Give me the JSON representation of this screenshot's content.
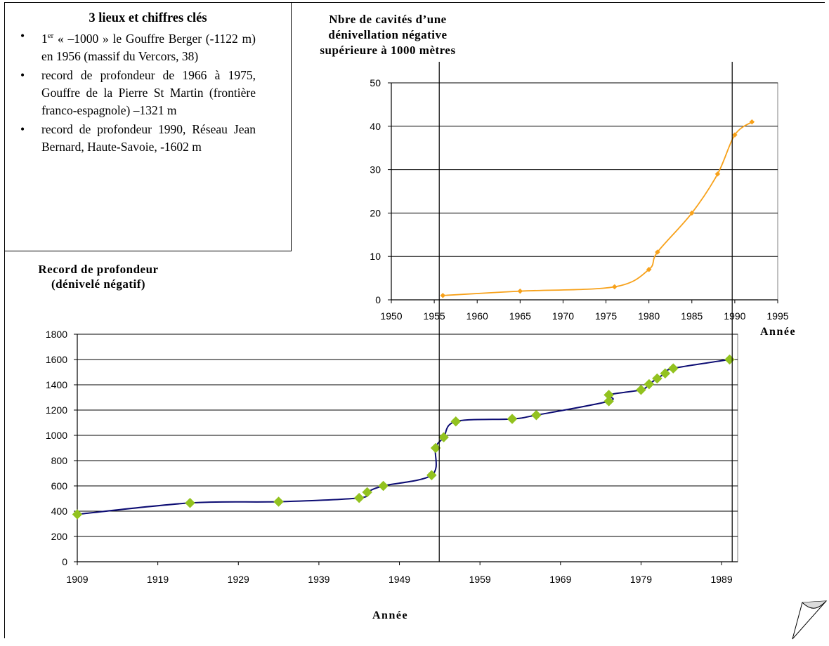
{
  "info_box": {
    "title": "3 lieux et chiffres clés",
    "items": [
      {
        "prefix": "1",
        "sup": "er",
        "text": " « –1000 » le Gouffre Berger (-1122 m) en 1956 (massif du Vercors, 38)"
      },
      {
        "prefix": "",
        "sup": "",
        "text": "record de profondeur de 1966 à 1975, Gouffre de la Pierre St Martin (frontière franco-espagnole) –1321 m"
      },
      {
        "prefix": "",
        "sup": "",
        "text": "record de profondeur 1990, Réseau Jean Bernard, Haute-Savoie, -1602 m"
      }
    ]
  },
  "chart_data": [
    {
      "type": "line",
      "ylabel": "Nbre de cavités d’une dénivellation négative supérieure à 1000 mètres",
      "xlabel": "Année",
      "xlim": [
        1950,
        1995
      ],
      "ylim": [
        0,
        50
      ],
      "x_ticks": [
        1950,
        1955,
        1960,
        1965,
        1970,
        1975,
        1980,
        1985,
        1990,
        1995
      ],
      "y_ticks": [
        0,
        10,
        20,
        30,
        40,
        50
      ],
      "grid": "horizontal",
      "line_color": "#F7A11A",
      "marker_color": "#F7A11A",
      "x": [
        1956,
        1965,
        1976,
        1980,
        1981,
        1985,
        1988,
        1990,
        1992
      ],
      "y": [
        1,
        2,
        3,
        7,
        11,
        20,
        29,
        38,
        41
      ]
    },
    {
      "type": "line",
      "ylabel": "Record de profondeur (dénivelé négatif)",
      "xlabel": "Année",
      "xlim": [
        1909,
        1991
      ],
      "ylim": [
        0,
        1800
      ],
      "x_ticks": [
        1909,
        1919,
        1929,
        1939,
        1949,
        1959,
        1969,
        1979,
        1989
      ],
      "y_ticks": [
        0,
        200,
        400,
        600,
        800,
        1000,
        1200,
        1400,
        1600,
        1800
      ],
      "grid": "horizontal",
      "line_color": "#0C0C73",
      "marker_color": "#92C21F",
      "x": [
        1909,
        1923,
        1934,
        1944,
        1945,
        1947,
        1953,
        1953.5,
        1954.5,
        1956,
        1963,
        1966,
        1975,
        1975,
        1979,
        1980,
        1981,
        1982,
        1983,
        1990
      ],
      "y": [
        375,
        465,
        475,
        505,
        550,
        600,
        685,
        900,
        985,
        1110,
        1130,
        1160,
        1270,
        1320,
        1360,
        1405,
        1450,
        1490,
        1530,
        1600
      ]
    }
  ]
}
